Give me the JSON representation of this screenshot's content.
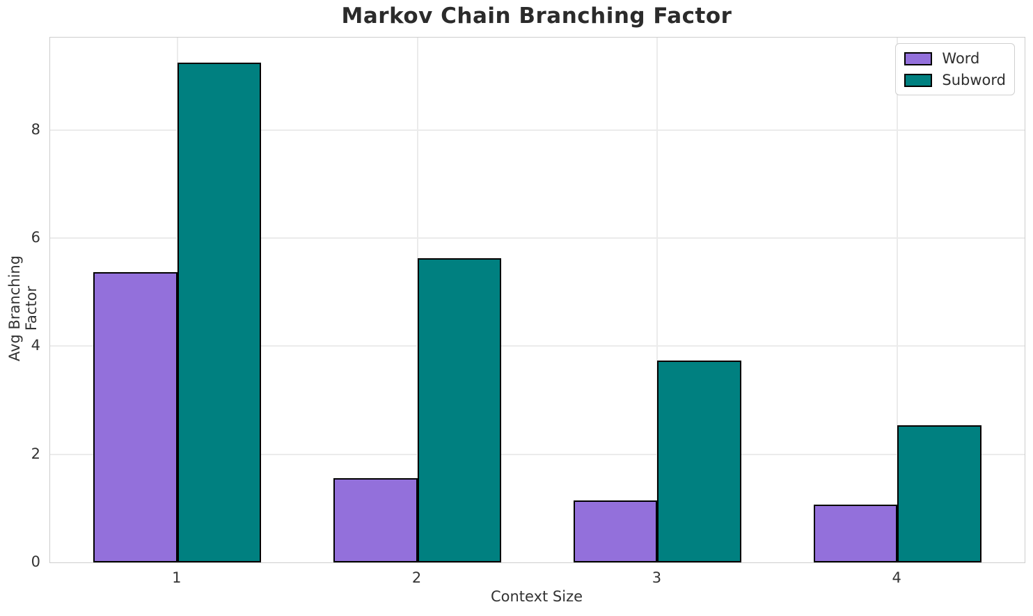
{
  "chart_data": {
    "type": "bar",
    "title": "Markov Chain Branching Factor",
    "xlabel": "Context Size",
    "ylabel": "Avg Branching Factor",
    "categories": [
      "1",
      "2",
      "3",
      "4"
    ],
    "series": [
      {
        "name": "Word",
        "color": "#9370DB",
        "values": [
          5.37,
          1.56,
          1.14,
          1.07
        ]
      },
      {
        "name": "Subword",
        "color": "#008080",
        "values": [
          9.25,
          5.63,
          3.73,
          2.54
        ]
      }
    ],
    "bar_edge_color": "#000000",
    "bar_width": 0.35,
    "x_positions": [
      1,
      2,
      3,
      4
    ],
    "xlim": [
      0.47,
      4.53
    ],
    "ylim": [
      0,
      9.71
    ],
    "yticks": [
      0,
      2,
      4,
      6,
      8
    ],
    "grid": true,
    "legend_position": "upper right"
  },
  "style": {
    "background": "#ffffff",
    "grid_color": "#ebebeb",
    "spine_color": "#cdcdcd",
    "title_color": "#2b2b2b",
    "text_color": "#333333"
  }
}
